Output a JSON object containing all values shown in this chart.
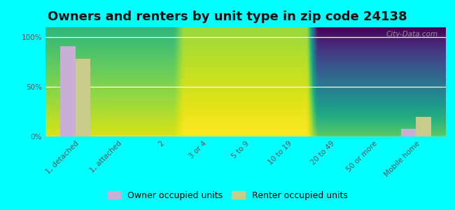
{
  "title": "Owners and renters by unit type in zip code 24138",
  "categories": [
    "1, detached",
    "1, attached",
    "2",
    "3 or 4",
    "5 to 9",
    "10 to 19",
    "20 to 49",
    "50 or more",
    "Mobile home"
  ],
  "owner_values": [
    91,
    0,
    0,
    0,
    0,
    0,
    0,
    0,
    8
  ],
  "renter_values": [
    78,
    0,
    0,
    0,
    0,
    0,
    0,
    0,
    20
  ],
  "owner_color": "#c9aed6",
  "renter_color": "#c8cc8a",
  "background_color": "#00ffff",
  "plot_bg_gradient_top": "#d8e8a0",
  "plot_bg_gradient_bottom": "#f0f5e0",
  "yticks": [
    0,
    50,
    100
  ],
  "ytick_labels": [
    "0%",
    "50%",
    "100%"
  ],
  "ylim": [
    0,
    110
  ],
  "watermark": "City-Data.com",
  "bar_width": 0.35,
  "title_fontsize": 13,
  "legend_fontsize": 9,
  "tick_fontsize": 7.5
}
